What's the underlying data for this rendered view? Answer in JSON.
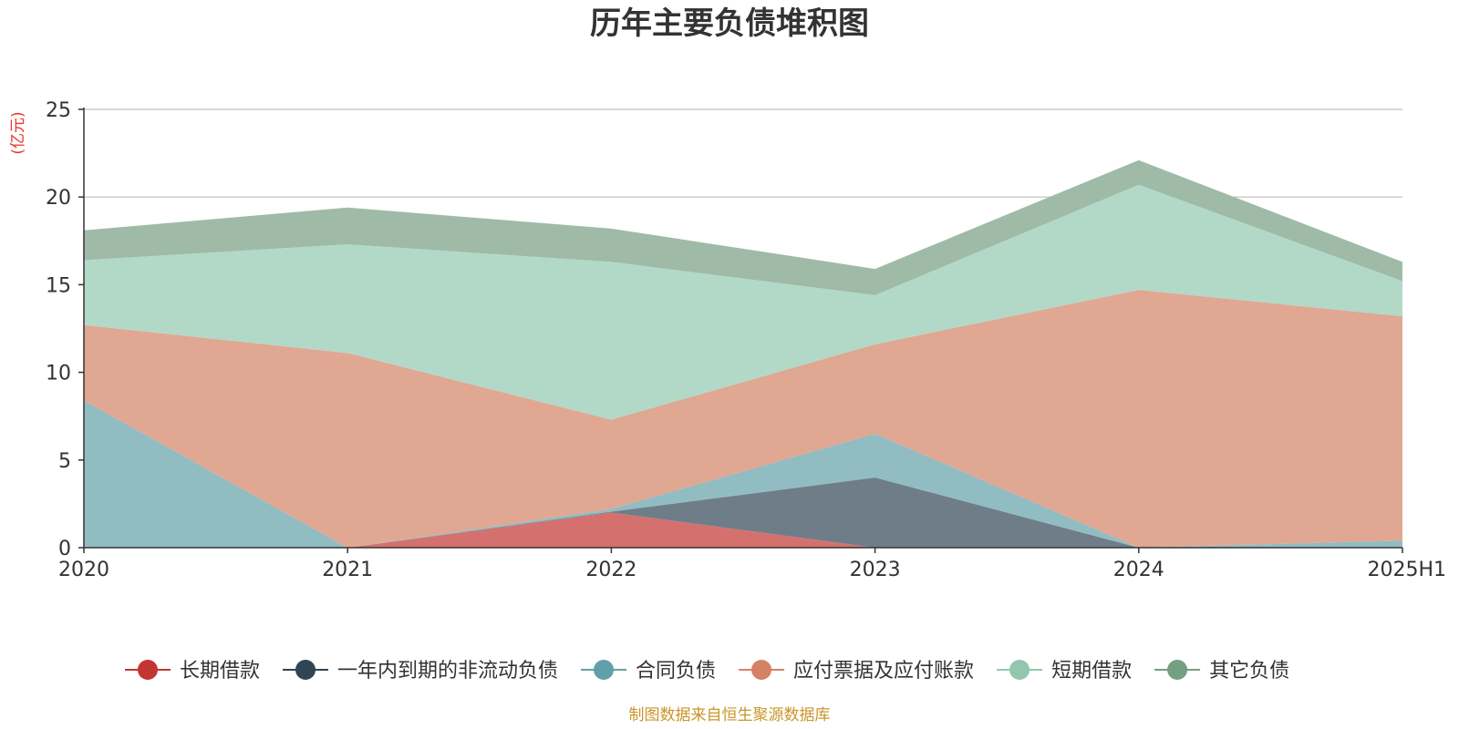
{
  "chart_data": {
    "type": "area",
    "stacked": true,
    "title": "历年主要负债堆积图",
    "unit": "(亿元)",
    "x": [
      "2020",
      "2021",
      "2022",
      "2023",
      "2024",
      "2025H1"
    ],
    "ylim": [
      0,
      25
    ],
    "yticks": [
      0,
      5,
      10,
      15,
      20,
      25
    ],
    "grid": true,
    "legend_position": "bottom",
    "series": [
      {
        "name": "长期借款",
        "color": "#c23531",
        "fill": "#d4716f",
        "values": [
          0,
          0,
          2.0,
          0,
          0,
          0
        ]
      },
      {
        "name": "一年内到期的非流动负债",
        "color": "#2f4554",
        "fill": "#6f7d88",
        "values": [
          0,
          0,
          0.05,
          4.0,
          0,
          0
        ]
      },
      {
        "name": "合同负债",
        "color": "#61a0a8",
        "fill": "#91bcc2",
        "values": [
          8.4,
          0,
          0.15,
          2.5,
          0,
          0.4
        ]
      },
      {
        "name": "应付票据及应付账款",
        "color": "#d48265",
        "fill": "#e0a792",
        "values": [
          4.3,
          11.1,
          5.1,
          5.1,
          14.7,
          12.8
        ]
      },
      {
        "name": "短期借款",
        "color": "#91c7ae",
        "fill": "#b2d9c7",
        "values": [
          3.7,
          6.2,
          9.0,
          2.8,
          6.0,
          2.0
        ]
      },
      {
        "name": "其它负债",
        "color": "#749f83",
        "fill": "#9fbba8",
        "values": [
          1.7,
          2.1,
          1.9,
          1.5,
          1.4,
          1.1
        ]
      }
    ]
  },
  "footer": {
    "source": "制图数据来自恒生聚源数据库"
  }
}
